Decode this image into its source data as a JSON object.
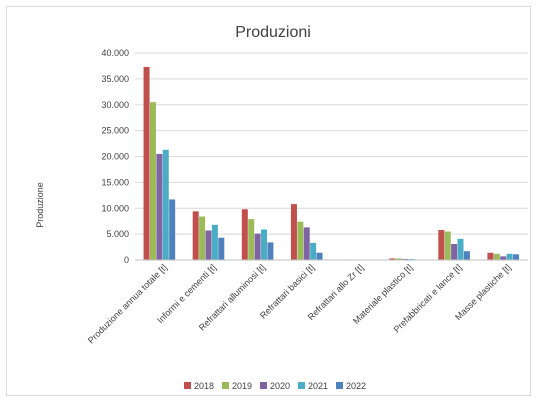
{
  "chart_data": {
    "type": "bar",
    "title": "Produzioni",
    "ylabel": "Produzione",
    "xlabel": "",
    "ylim": [
      0,
      40000
    ],
    "yticks": [
      "0",
      "5.000",
      "10.000",
      "15.000",
      "20.000",
      "25.000",
      "30.000",
      "35.000",
      "40.000"
    ],
    "grid": true,
    "legend_position": "bottom",
    "categories": [
      "Produzione annua totale [t]",
      "Informi e cementi [t]",
      "Refrattari alluminosi [t]",
      "Refrattari basici [t]",
      "Refrattari allo Zr [t]",
      "Materiale plastico [t]",
      "Prefabbricati e lance [t]",
      "Masse plastiche [t]"
    ],
    "series": [
      {
        "name": "2018",
        "color": "#c0504d",
        "values": [
          37300,
          9400,
          9800,
          10800,
          100,
          300,
          5800,
          1400
        ]
      },
      {
        "name": "2019",
        "color": "#9bbb59",
        "values": [
          30500,
          8400,
          7900,
          7400,
          100,
          300,
          5500,
          1200
        ]
      },
      {
        "name": "2020",
        "color": "#8064a2",
        "values": [
          20500,
          5700,
          5100,
          6300,
          50,
          200,
          3100,
          700
        ]
      },
      {
        "name": "2021",
        "color": "#4bacc6",
        "values": [
          21300,
          6800,
          5900,
          3300,
          50,
          200,
          4100,
          1200
        ]
      },
      {
        "name": "2022",
        "color": "#4f81bd",
        "values": [
          11700,
          4300,
          3400,
          1400,
          50,
          100,
          1700,
          1100
        ]
      }
    ]
  }
}
